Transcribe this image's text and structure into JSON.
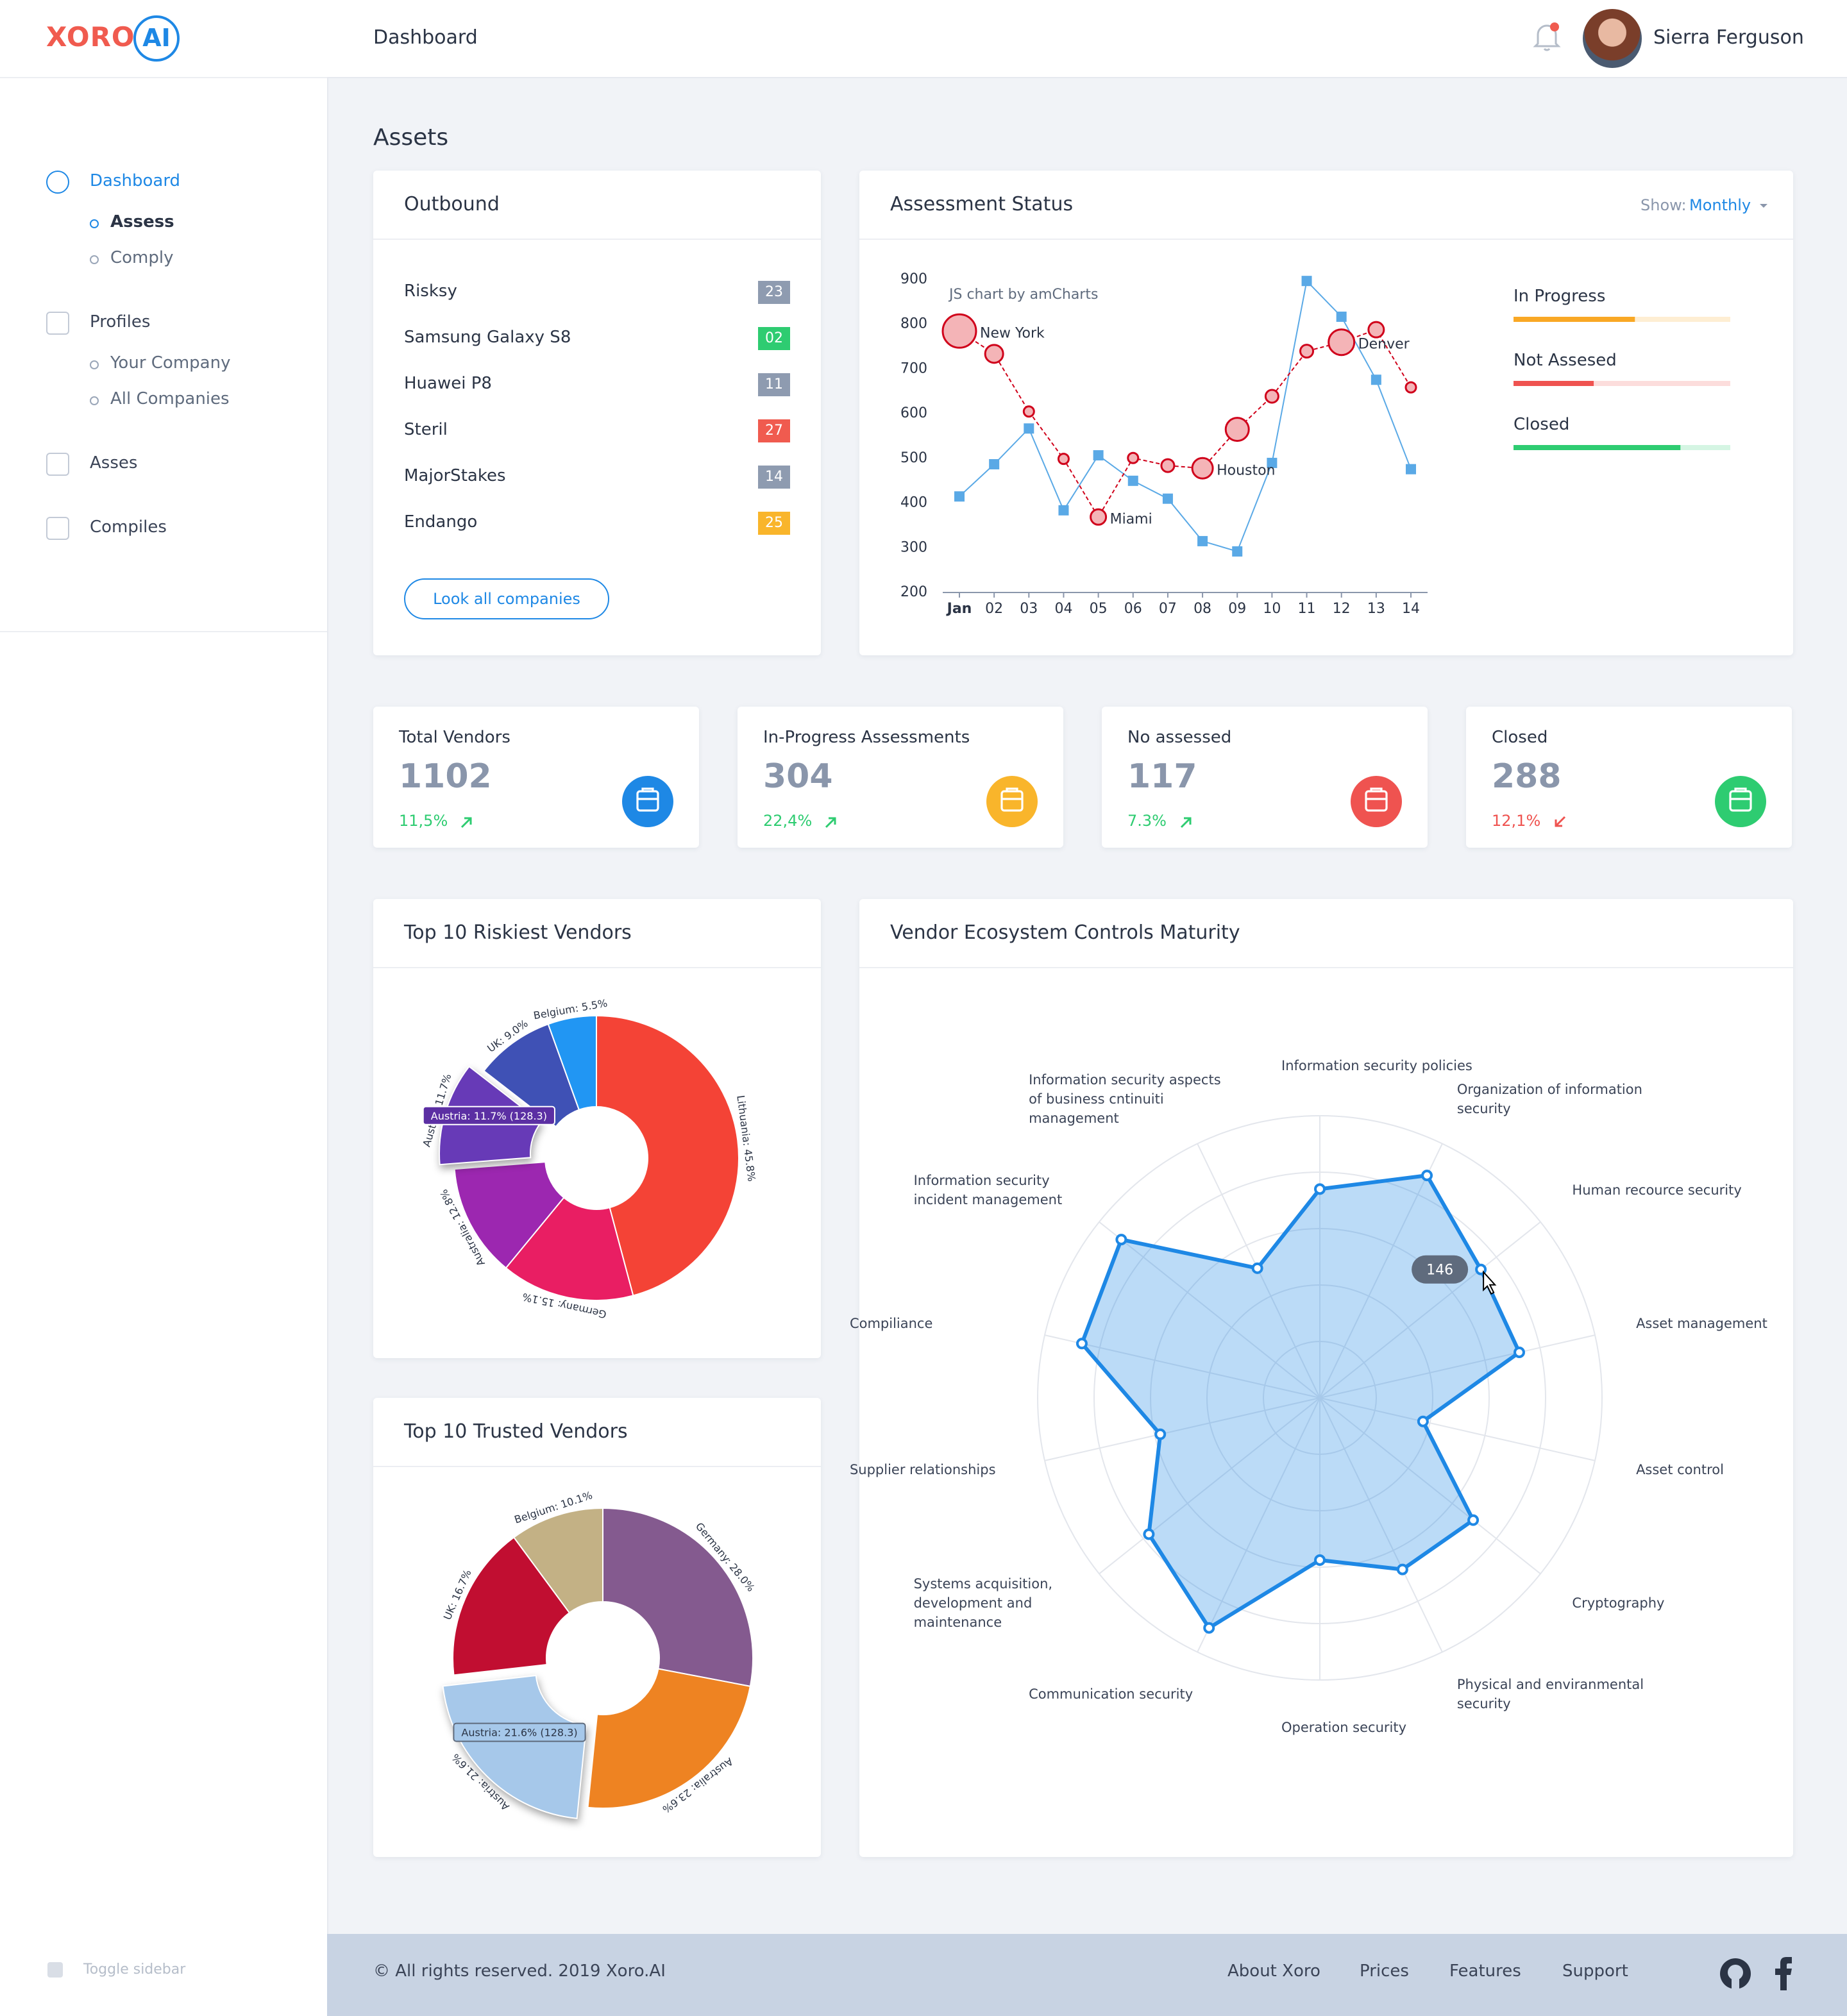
{
  "brand": {
    "name": "XORO",
    "suffix": "AI"
  },
  "header": {
    "title": "Dashboard",
    "user": "Sierra Ferguson"
  },
  "sidebar": {
    "items": [
      {
        "label": "Dashboard",
        "children": [
          "Assess",
          "Comply"
        ]
      },
      {
        "label": "Profiles",
        "children": [
          "Your Company",
          "All Companies"
        ]
      },
      {
        "label": "Asses"
      },
      {
        "label": "Compiles"
      }
    ],
    "toggle": "Toggle sidebar"
  },
  "section_title": "Assets",
  "outbound": {
    "title": "Outbound",
    "rows": [
      {
        "name": "Risksy",
        "value": "23",
        "color": "#8e9bb0"
      },
      {
        "name": "Samsung Galaxy S8",
        "value": "02",
        "color": "#2ecc71"
      },
      {
        "name": "Huawei P8",
        "value": "11",
        "color": "#8e9bb0"
      },
      {
        "name": "Steril",
        "value": "27",
        "color": "#f05b4f"
      },
      {
        "name": "MajorStakes",
        "value": "14",
        "color": "#8e9bb0"
      },
      {
        "name": "Endango",
        "value": "25",
        "color": "#f9b52b"
      }
    ],
    "button": "Look all companies"
  },
  "stats": [
    {
      "title": "Total Vendors",
      "value": 1102,
      "change": "11,5%",
      "trend": "up",
      "color": "#1e88e5"
    },
    {
      "title": "In-Progress Assessments",
      "value": 304,
      "change": "22,4%",
      "trend": "up",
      "color": "#f9b52b"
    },
    {
      "title": "No assessed",
      "value": 117,
      "change": "7.3%",
      "trend": "up",
      "color": "#ef5350"
    },
    {
      "title": "Closed",
      "value": 288,
      "change": "12,1%",
      "trend": "down",
      "color": "#2ecc71"
    }
  ],
  "chart_data": [
    {
      "type": "line",
      "title": "Assessment Status",
      "filter_label": "Show:",
      "filter_value": "Monthly",
      "watermark": "JS chart by amCharts",
      "categories": [
        "Jan",
        "02",
        "03",
        "04",
        "05",
        "06",
        "07",
        "08",
        "09",
        "10",
        "11",
        "12",
        "13",
        "14"
      ],
      "ylim": [
        200,
        900
      ],
      "yticks": [
        200,
        300,
        400,
        500,
        600,
        700,
        800,
        900
      ],
      "series": [
        {
          "color": "#5aa9e6",
          "marker": "square",
          "values": [
            412,
            484,
            564,
            381,
            504,
            447,
            407,
            312,
            289,
            487,
            894,
            814,
            673,
            473
          ]
        },
        {
          "color": "#d0021b",
          "marker": "bubble",
          "dashed": true,
          "values": [
            782,
            731,
            602,
            496,
            366,
            498,
            481,
            475,
            562,
            636,
            737,
            757,
            785,
            656
          ],
          "sizes": [
            13,
            7,
            4,
            4,
            6,
            4,
            5,
            8,
            9,
            5,
            5,
            10,
            6,
            4
          ],
          "point_labels": [
            "New York",
            null,
            null,
            null,
            "Miami",
            null,
            null,
            "Houston",
            null,
            null,
            null,
            "Denver",
            null,
            null
          ]
        }
      ]
    },
    {
      "type": "progress",
      "categories": [
        "In Progress",
        "Not Assesed",
        "Closed"
      ],
      "values": [
        56,
        37,
        77
      ],
      "colors": [
        "#f9a825",
        "#ef5350",
        "#2ecc71"
      ],
      "xlim": [
        0,
        100
      ]
    },
    {
      "type": "pie",
      "title": "Top 10 Riskiest Vendors",
      "values": [
        45.8,
        15.1,
        12.8,
        11.7,
        9.0,
        5.5
      ],
      "value_labels": [
        "Lithuania: 45.8%",
        "Germany: 15.1%",
        "Australia: 12.8%",
        "Austria: 11.7%",
        "UK: 9.0%",
        "Belgium: 5.5%"
      ],
      "colors": [
        "#f44336",
        "#e91e63",
        "#9c27b0",
        "#673ab7",
        "#3f51b5",
        "#2196f3"
      ],
      "exploded": [
        false,
        false,
        false,
        true,
        false,
        false
      ],
      "tooltip": "Austria: 11.7% (128.3)"
    },
    {
      "type": "pie",
      "title": "Top 10 Trusted Vendors",
      "values": [
        28.0,
        23.6,
        21.6,
        16.7,
        10.1
      ],
      "value_labels": [
        "Germany: 28.0%",
        "Australia: 23.6%",
        "Austria: 21.6%",
        "UK: 16.7%",
        "Belgium: 10.1%"
      ],
      "colors": [
        "#845a8f",
        "#ee8322",
        "#a6c8ea",
        "#c10e31",
        "#c3b185"
      ],
      "exploded": [
        false,
        false,
        true,
        false,
        false
      ],
      "tooltip": "Austria: 21.6% (128.3)"
    },
    {
      "type": "radar",
      "title": "Vendor Ecosystem Controls Maturity",
      "categories": [
        "Information security policies",
        "Organization of information security",
        "Human recource security",
        "Asset management",
        "Asset control",
        "Cryptography",
        "Physical and enviranmental security",
        "Operation security",
        "Communication security",
        "Systems acquisition, development and maintenance",
        "Supplier relationships",
        "Compiliance",
        "Information security incident management",
        "Information security aspects of business cntinuiti management"
      ],
      "values": [
        148,
        175,
        146,
        145,
        75,
        139,
        135,
        115,
        181,
        155,
        116,
        173,
        180,
        102
      ],
      "rlim": [
        0,
        200
      ],
      "color": "#1e88e5"
    }
  ],
  "footer": {
    "copyright": "© All rights reserved. 2019 Xoro.AI",
    "links": [
      "About Xoro",
      "Prices",
      "Features",
      "Support"
    ]
  }
}
